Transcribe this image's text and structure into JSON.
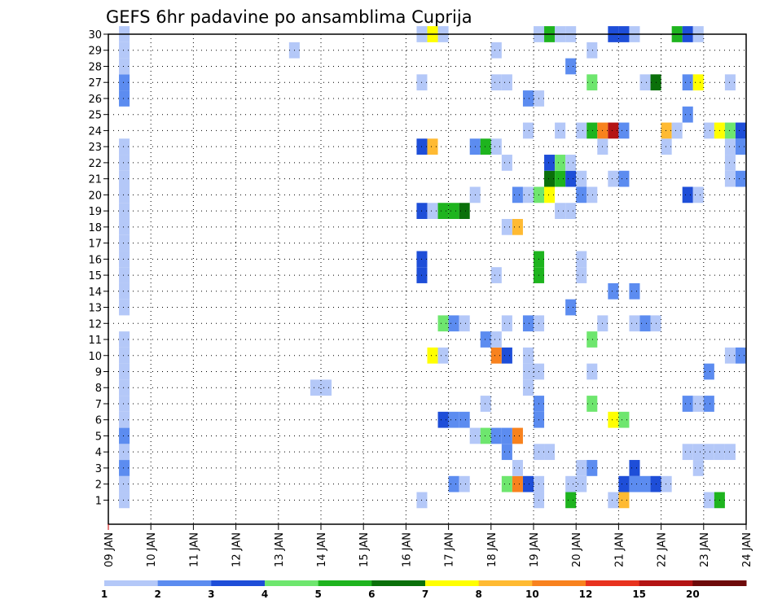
{
  "chart_data": {
    "type": "heatmap",
    "title": "GEFS 6hr padavine po ansamblima Cuprija",
    "xlabel": "",
    "ylabel": "",
    "x_tick_labels": [
      "09 JAN",
      "10 JAN",
      "11 JAN",
      "12 JAN",
      "13 JAN",
      "14 JAN",
      "15 JAN",
      "16 JAN",
      "17 JAN",
      "18 JAN",
      "19 JAN",
      "20 JAN",
      "21 JAN",
      "22 JAN",
      "23 JAN",
      "24 JAN"
    ],
    "y_tick_labels": [
      "1",
      "2",
      "3",
      "4",
      "5",
      "6",
      "7",
      "8",
      "9",
      "10",
      "11",
      "12",
      "13",
      "14",
      "15",
      "16",
      "17",
      "18",
      "19",
      "20",
      "21",
      "22",
      "23",
      "24",
      "25",
      "26",
      "27",
      "28",
      "29",
      "30"
    ],
    "xlim": [
      "09 JAN",
      "24 JAN"
    ],
    "time_step_hours": 6,
    "ylim": [
      1,
      30
    ],
    "grid": true,
    "legend_position": "bottom",
    "legend": {
      "labels": [
        "1",
        "2",
        "3",
        "4",
        "5",
        "6",
        "7",
        "8",
        "10",
        "12",
        "15",
        "20"
      ],
      "colors": [
        "#b4c8f8",
        "#5c8cf0",
        "#1e4ed8",
        "#6ee66e",
        "#1eb41e",
        "#0a700a",
        "#ffff00",
        "#ffba32",
        "#f8821e",
        "#e8321e",
        "#b41414",
        "#6e0a0a"
      ]
    },
    "cells": [
      {
        "member": 1,
        "start": "09 JAN 06Z",
        "cls": 1
      },
      {
        "member": 1,
        "start": "16 JAN 06Z",
        "cls": 1
      },
      {
        "member": 1,
        "start": "19 JAN 00Z",
        "cls": 1
      },
      {
        "member": 1,
        "start": "19 JAN 18Z",
        "cls": 5
      },
      {
        "member": 1,
        "start": "20 JAN 18Z",
        "cls": 1
      },
      {
        "member": 1,
        "start": "21 JAN 00Z",
        "cls": 8
      },
      {
        "member": 1,
        "start": "23 JAN 00Z",
        "cls": 1
      },
      {
        "member": 1,
        "start": "23 JAN 06Z",
        "cls": 5
      },
      {
        "member": 2,
        "start": "09 JAN 06Z",
        "cls": 1
      },
      {
        "member": 2,
        "start": "17 JAN 00Z",
        "cls": 2
      },
      {
        "member": 2,
        "start": "17 JAN 06Z",
        "cls": 1
      },
      {
        "member": 2,
        "start": "18 JAN 06Z",
        "cls": 4
      },
      {
        "member": 2,
        "start": "18 JAN 12Z",
        "cls": 9
      },
      {
        "member": 2,
        "start": "18 JAN 18Z",
        "cls": 3
      },
      {
        "member": 2,
        "start": "19 JAN 00Z",
        "cls": 1
      },
      {
        "member": 2,
        "start": "19 JAN 18Z",
        "cls": 1
      },
      {
        "member": 2,
        "start": "20 JAN 00Z",
        "cls": 1
      },
      {
        "member": 2,
        "start": "21 JAN 00Z",
        "cls": 3
      },
      {
        "member": 2,
        "start": "21 JAN 06Z",
        "cls": 2
      },
      {
        "member": 2,
        "start": "21 JAN 12Z",
        "cls": 2
      },
      {
        "member": 2,
        "start": "21 JAN 18Z",
        "cls": 3
      },
      {
        "member": 2,
        "start": "22 JAN 00Z",
        "cls": 1
      },
      {
        "member": 3,
        "start": "09 JAN 06Z",
        "cls": 2
      },
      {
        "member": 3,
        "start": "18 JAN 12Z",
        "cls": 1
      },
      {
        "member": 3,
        "start": "20 JAN 00Z",
        "cls": 1
      },
      {
        "member": 3,
        "start": "20 JAN 06Z",
        "cls": 2
      },
      {
        "member": 3,
        "start": "21 JAN 06Z",
        "cls": 3
      },
      {
        "member": 3,
        "start": "22 JAN 18Z",
        "cls": 1
      },
      {
        "member": 4,
        "start": "09 JAN 06Z",
        "cls": 1
      },
      {
        "member": 4,
        "start": "18 JAN 06Z",
        "cls": 2
      },
      {
        "member": 4,
        "start": "19 JAN 00Z",
        "cls": 1
      },
      {
        "member": 4,
        "start": "19 JAN 06Z",
        "cls": 1
      },
      {
        "member": 4,
        "start": "22 JAN 12Z",
        "cls": 1
      },
      {
        "member": 4,
        "start": "22 JAN 18Z",
        "cls": 1
      },
      {
        "member": 4,
        "start": "23 JAN 00Z",
        "cls": 1
      },
      {
        "member": 4,
        "start": "23 JAN 06Z",
        "cls": 1
      },
      {
        "member": 4,
        "start": "23 JAN 12Z",
        "cls": 1
      },
      {
        "member": 5,
        "start": "09 JAN 06Z",
        "cls": 2
      },
      {
        "member": 5,
        "start": "17 JAN 12Z",
        "cls": 1
      },
      {
        "member": 5,
        "start": "17 JAN 18Z",
        "cls": 4
      },
      {
        "member": 5,
        "start": "18 JAN 00Z",
        "cls": 2
      },
      {
        "member": 5,
        "start": "18 JAN 06Z",
        "cls": 2
      },
      {
        "member": 5,
        "start": "18 JAN 12Z",
        "cls": 9
      },
      {
        "member": 6,
        "start": "09 JAN 06Z",
        "cls": 1
      },
      {
        "member": 6,
        "start": "16 JAN 18Z",
        "cls": 3
      },
      {
        "member": 6,
        "start": "17 JAN 00Z",
        "cls": 2
      },
      {
        "member": 6,
        "start": "17 JAN 06Z",
        "cls": 2
      },
      {
        "member": 6,
        "start": "19 JAN 00Z",
        "cls": 2
      },
      {
        "member": 6,
        "start": "20 JAN 18Z",
        "cls": 7
      },
      {
        "member": 6,
        "start": "21 JAN 00Z",
        "cls": 4
      },
      {
        "member": 7,
        "start": "09 JAN 06Z",
        "cls": 1
      },
      {
        "member": 7,
        "start": "17 JAN 18Z",
        "cls": 1
      },
      {
        "member": 7,
        "start": "19 JAN 00Z",
        "cls": 2
      },
      {
        "member": 7,
        "start": "20 JAN 06Z",
        "cls": 4
      },
      {
        "member": 7,
        "start": "22 JAN 12Z",
        "cls": 2
      },
      {
        "member": 7,
        "start": "22 JAN 18Z",
        "cls": 1
      },
      {
        "member": 7,
        "start": "23 JAN 00Z",
        "cls": 2
      },
      {
        "member": 8,
        "start": "09 JAN 06Z",
        "cls": 1
      },
      {
        "member": 8,
        "start": "13 JAN 18Z",
        "cls": 1
      },
      {
        "member": 8,
        "start": "14 JAN 00Z",
        "cls": 1
      },
      {
        "member": 8,
        "start": "18 JAN 18Z",
        "cls": 1
      },
      {
        "member": 9,
        "start": "09 JAN 06Z",
        "cls": 1
      },
      {
        "member": 9,
        "start": "18 JAN 18Z",
        "cls": 1
      },
      {
        "member": 9,
        "start": "19 JAN 00Z",
        "cls": 1
      },
      {
        "member": 9,
        "start": "20 JAN 06Z",
        "cls": 1
      },
      {
        "member": 9,
        "start": "23 JAN 00Z",
        "cls": 2
      },
      {
        "member": 10,
        "start": "09 JAN 06Z",
        "cls": 1
      },
      {
        "member": 10,
        "start": "16 JAN 12Z",
        "cls": 7
      },
      {
        "member": 10,
        "start": "16 JAN 18Z",
        "cls": 1
      },
      {
        "member": 10,
        "start": "18 JAN 00Z",
        "cls": 9
      },
      {
        "member": 10,
        "start": "18 JAN 06Z",
        "cls": 3
      },
      {
        "member": 10,
        "start": "18 JAN 18Z",
        "cls": 1
      },
      {
        "member": 10,
        "start": "23 JAN 12Z",
        "cls": 1
      },
      {
        "member": 10,
        "start": "23 JAN 18Z",
        "cls": 2
      },
      {
        "member": 11,
        "start": "09 JAN 06Z",
        "cls": 1
      },
      {
        "member": 11,
        "start": "17 JAN 18Z",
        "cls": 2
      },
      {
        "member": 11,
        "start": "18 JAN 00Z",
        "cls": 1
      },
      {
        "member": 11,
        "start": "20 JAN 06Z",
        "cls": 4
      },
      {
        "member": 12,
        "start": "16 JAN 18Z",
        "cls": 4
      },
      {
        "member": 12,
        "start": "17 JAN 00Z",
        "cls": 2
      },
      {
        "member": 12,
        "start": "17 JAN 06Z",
        "cls": 1
      },
      {
        "member": 12,
        "start": "18 JAN 06Z",
        "cls": 1
      },
      {
        "member": 12,
        "start": "18 JAN 18Z",
        "cls": 2
      },
      {
        "member": 12,
        "start": "19 JAN 00Z",
        "cls": 1
      },
      {
        "member": 12,
        "start": "20 JAN 12Z",
        "cls": 1
      },
      {
        "member": 12,
        "start": "21 JAN 06Z",
        "cls": 1
      },
      {
        "member": 12,
        "start": "21 JAN 12Z",
        "cls": 2
      },
      {
        "member": 12,
        "start": "21 JAN 18Z",
        "cls": 1
      },
      {
        "member": 13,
        "start": "09 JAN 06Z",
        "cls": 1
      },
      {
        "member": 13,
        "start": "19 JAN 18Z",
        "cls": 2
      },
      {
        "member": 14,
        "start": "09 JAN 06Z",
        "cls": 1
      },
      {
        "member": 14,
        "start": "20 JAN 18Z",
        "cls": 2
      },
      {
        "member": 14,
        "start": "21 JAN 06Z",
        "cls": 2
      },
      {
        "member": 15,
        "start": "09 JAN 06Z",
        "cls": 1
      },
      {
        "member": 15,
        "start": "16 JAN 06Z",
        "cls": 3
      },
      {
        "member": 15,
        "start": "18 JAN 00Z",
        "cls": 1
      },
      {
        "member": 15,
        "start": "19 JAN 00Z",
        "cls": 5
      },
      {
        "member": 15,
        "start": "20 JAN 00Z",
        "cls": 1
      },
      {
        "member": 16,
        "start": "09 JAN 06Z",
        "cls": 1
      },
      {
        "member": 16,
        "start": "16 JAN 06Z",
        "cls": 3
      },
      {
        "member": 16,
        "start": "19 JAN 00Z",
        "cls": 5
      },
      {
        "member": 16,
        "start": "20 JAN 00Z",
        "cls": 1
      },
      {
        "member": 17,
        "start": "09 JAN 06Z",
        "cls": 1
      },
      {
        "member": 18,
        "start": "09 JAN 06Z",
        "cls": 1
      },
      {
        "member": 18,
        "start": "18 JAN 06Z",
        "cls": 1
      },
      {
        "member": 18,
        "start": "18 JAN 12Z",
        "cls": 8
      },
      {
        "member": 19,
        "start": "09 JAN 06Z",
        "cls": 1
      },
      {
        "member": 19,
        "start": "16 JAN 06Z",
        "cls": 3
      },
      {
        "member": 19,
        "start": "16 JAN 12Z",
        "cls": 1
      },
      {
        "member": 19,
        "start": "16 JAN 18Z",
        "cls": 5
      },
      {
        "member": 19,
        "start": "17 JAN 00Z",
        "cls": 5
      },
      {
        "member": 19,
        "start": "17 JAN 06Z",
        "cls": 6
      },
      {
        "member": 19,
        "start": "19 JAN 12Z",
        "cls": 1
      },
      {
        "member": 19,
        "start": "19 JAN 18Z",
        "cls": 1
      },
      {
        "member": 20,
        "start": "09 JAN 06Z",
        "cls": 1
      },
      {
        "member": 20,
        "start": "17 JAN 12Z",
        "cls": 1
      },
      {
        "member": 20,
        "start": "18 JAN 12Z",
        "cls": 2
      },
      {
        "member": 20,
        "start": "18 JAN 18Z",
        "cls": 1
      },
      {
        "member": 20,
        "start": "19 JAN 00Z",
        "cls": 4
      },
      {
        "member": 20,
        "start": "19 JAN 06Z",
        "cls": 7
      },
      {
        "member": 20,
        "start": "20 JAN 00Z",
        "cls": 2
      },
      {
        "member": 20,
        "start": "20 JAN 06Z",
        "cls": 1
      },
      {
        "member": 20,
        "start": "22 JAN 12Z",
        "cls": 3
      },
      {
        "member": 20,
        "start": "22 JAN 18Z",
        "cls": 1
      },
      {
        "member": 21,
        "start": "09 JAN 06Z",
        "cls": 1
      },
      {
        "member": 21,
        "start": "19 JAN 06Z",
        "cls": 6
      },
      {
        "member": 21,
        "start": "19 JAN 12Z",
        "cls": 5
      },
      {
        "member": 21,
        "start": "19 JAN 18Z",
        "cls": 3
      },
      {
        "member": 21,
        "start": "20 JAN 00Z",
        "cls": 1
      },
      {
        "member": 21,
        "start": "20 JAN 18Z",
        "cls": 1
      },
      {
        "member": 21,
        "start": "21 JAN 00Z",
        "cls": 2
      },
      {
        "member": 21,
        "start": "23 JAN 12Z",
        "cls": 1
      },
      {
        "member": 21,
        "start": "23 JAN 18Z",
        "cls": 2
      },
      {
        "member": 22,
        "start": "09 JAN 06Z",
        "cls": 1
      },
      {
        "member": 22,
        "start": "18 JAN 06Z",
        "cls": 1
      },
      {
        "member": 22,
        "start": "19 JAN 06Z",
        "cls": 3
      },
      {
        "member": 22,
        "start": "19 JAN 12Z",
        "cls": 4
      },
      {
        "member": 22,
        "start": "19 JAN 18Z",
        "cls": 1
      },
      {
        "member": 22,
        "start": "23 JAN 12Z",
        "cls": 1
      },
      {
        "member": 23,
        "start": "09 JAN 06Z",
        "cls": 1
      },
      {
        "member": 23,
        "start": "16 JAN 06Z",
        "cls": 3
      },
      {
        "member": 23,
        "start": "16 JAN 12Z",
        "cls": 8
      },
      {
        "member": 23,
        "start": "17 JAN 12Z",
        "cls": 2
      },
      {
        "member": 23,
        "start": "17 JAN 18Z",
        "cls": 5
      },
      {
        "member": 23,
        "start": "18 JAN 00Z",
        "cls": 1
      },
      {
        "member": 23,
        "start": "20 JAN 12Z",
        "cls": 1
      },
      {
        "member": 23,
        "start": "22 JAN 00Z",
        "cls": 1
      },
      {
        "member": 23,
        "start": "23 JAN 12Z",
        "cls": 1
      },
      {
        "member": 23,
        "start": "23 JAN 18Z",
        "cls": 2
      },
      {
        "member": 24,
        "start": "18 JAN 18Z",
        "cls": 1
      },
      {
        "member": 24,
        "start": "19 JAN 12Z",
        "cls": 1
      },
      {
        "member": 24,
        "start": "20 JAN 00Z",
        "cls": 1
      },
      {
        "member": 24,
        "start": "20 JAN 06Z",
        "cls": 5
      },
      {
        "member": 24,
        "start": "20 JAN 12Z",
        "cls": 9
      },
      {
        "member": 24,
        "start": "20 JAN 18Z",
        "cls": 11
      },
      {
        "member": 24,
        "start": "21 JAN 00Z",
        "cls": 2
      },
      {
        "member": 24,
        "start": "22 JAN 00Z",
        "cls": 8
      },
      {
        "member": 24,
        "start": "22 JAN 06Z",
        "cls": 1
      },
      {
        "member": 24,
        "start": "23 JAN 00Z",
        "cls": 1
      },
      {
        "member": 24,
        "start": "23 JAN 06Z",
        "cls": 7
      },
      {
        "member": 24,
        "start": "23 JAN 12Z",
        "cls": 4
      },
      {
        "member": 24,
        "start": "23 JAN 18Z",
        "cls": 3
      },
      {
        "member": 25,
        "start": "22 JAN 12Z",
        "cls": 2
      },
      {
        "member": 26,
        "start": "09 JAN 06Z",
        "cls": 2
      },
      {
        "member": 26,
        "start": "18 JAN 18Z",
        "cls": 2
      },
      {
        "member": 26,
        "start": "19 JAN 00Z",
        "cls": 1
      },
      {
        "member": 27,
        "start": "09 JAN 06Z",
        "cls": 2
      },
      {
        "member": 27,
        "start": "16 JAN 06Z",
        "cls": 1
      },
      {
        "member": 27,
        "start": "18 JAN 00Z",
        "cls": 1
      },
      {
        "member": 27,
        "start": "18 JAN 06Z",
        "cls": 1
      },
      {
        "member": 27,
        "start": "20 JAN 06Z",
        "cls": 4
      },
      {
        "member": 27,
        "start": "21 JAN 12Z",
        "cls": 1
      },
      {
        "member": 27,
        "start": "21 JAN 18Z",
        "cls": 6
      },
      {
        "member": 27,
        "start": "22 JAN 12Z",
        "cls": 2
      },
      {
        "member": 27,
        "start": "22 JAN 18Z",
        "cls": 7
      },
      {
        "member": 27,
        "start": "23 JAN 12Z",
        "cls": 1
      },
      {
        "member": 28,
        "start": "09 JAN 06Z",
        "cls": 1
      },
      {
        "member": 28,
        "start": "19 JAN 18Z",
        "cls": 2
      },
      {
        "member": 29,
        "start": "09 JAN 06Z",
        "cls": 1
      },
      {
        "member": 29,
        "start": "13 JAN 06Z",
        "cls": 1
      },
      {
        "member": 29,
        "start": "18 JAN 00Z",
        "cls": 1
      },
      {
        "member": 29,
        "start": "20 JAN 06Z",
        "cls": 1
      },
      {
        "member": 30,
        "start": "09 JAN 06Z",
        "cls": 1
      },
      {
        "member": 30,
        "start": "16 JAN 06Z",
        "cls": 1
      },
      {
        "member": 30,
        "start": "16 JAN 12Z",
        "cls": 7
      },
      {
        "member": 30,
        "start": "16 JAN 18Z",
        "cls": 1
      },
      {
        "member": 30,
        "start": "19 JAN 00Z",
        "cls": 1
      },
      {
        "member": 30,
        "start": "19 JAN 06Z",
        "cls": 5
      },
      {
        "member": 30,
        "start": "19 JAN 12Z",
        "cls": 1
      },
      {
        "member": 30,
        "start": "19 JAN 18Z",
        "cls": 1
      },
      {
        "member": 30,
        "start": "20 JAN 18Z",
        "cls": 3
      },
      {
        "member": 30,
        "start": "21 JAN 00Z",
        "cls": 3
      },
      {
        "member": 30,
        "start": "21 JAN 06Z",
        "cls": 1
      },
      {
        "member": 30,
        "start": "22 JAN 06Z",
        "cls": 5
      },
      {
        "member": 30,
        "start": "22 JAN 12Z",
        "cls": 3
      },
      {
        "member": 30,
        "start": "22 JAN 18Z",
        "cls": 1
      }
    ]
  }
}
